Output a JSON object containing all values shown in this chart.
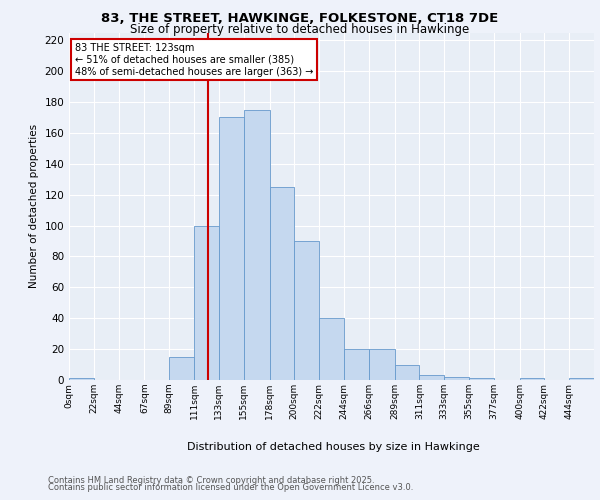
{
  "title_line1": "83, THE STREET, HAWKINGE, FOLKESTONE, CT18 7DE",
  "title_line2": "Size of property relative to detached houses in Hawkinge",
  "xlabel": "Distribution of detached houses by size in Hawkinge",
  "ylabel": "Number of detached properties",
  "bin_labels": [
    "0sqm",
    "22sqm",
    "44sqm",
    "67sqm",
    "89sqm",
    "111sqm",
    "133sqm",
    "155sqm",
    "178sqm",
    "200sqm",
    "222sqm",
    "244sqm",
    "266sqm",
    "289sqm",
    "311sqm",
    "333sqm",
    "355sqm",
    "377sqm",
    "400sqm",
    "422sqm",
    "444sqm"
  ],
  "bin_edges": [
    0,
    22,
    44,
    67,
    89,
    111,
    133,
    155,
    178,
    200,
    222,
    244,
    266,
    289,
    311,
    333,
    355,
    377,
    400,
    422,
    444,
    466
  ],
  "bar_heights": [
    1,
    0,
    0,
    0,
    15,
    100,
    170,
    175,
    125,
    90,
    40,
    20,
    20,
    10,
    3,
    2,
    1,
    0,
    1,
    0,
    1
  ],
  "bar_color": "#C5D8EF",
  "bar_edge_color": "#6699CC",
  "background_color": "#E8EEF6",
  "grid_color": "#FFFFFF",
  "vline_x": 123,
  "vline_color": "#CC0000",
  "annotation_text": "83 THE STREET: 123sqm\n← 51% of detached houses are smaller (385)\n48% of semi-detached houses are larger (363) →",
  "annotation_box_color": "#FFFFFF",
  "annotation_box_edge": "#CC0000",
  "ylim": [
    0,
    225
  ],
  "yticks": [
    0,
    20,
    40,
    60,
    80,
    100,
    120,
    140,
    160,
    180,
    200,
    220
  ],
  "footer_line1": "Contains HM Land Registry data © Crown copyright and database right 2025.",
  "footer_line2": "Contains public sector information licensed under the Open Government Licence v3.0."
}
